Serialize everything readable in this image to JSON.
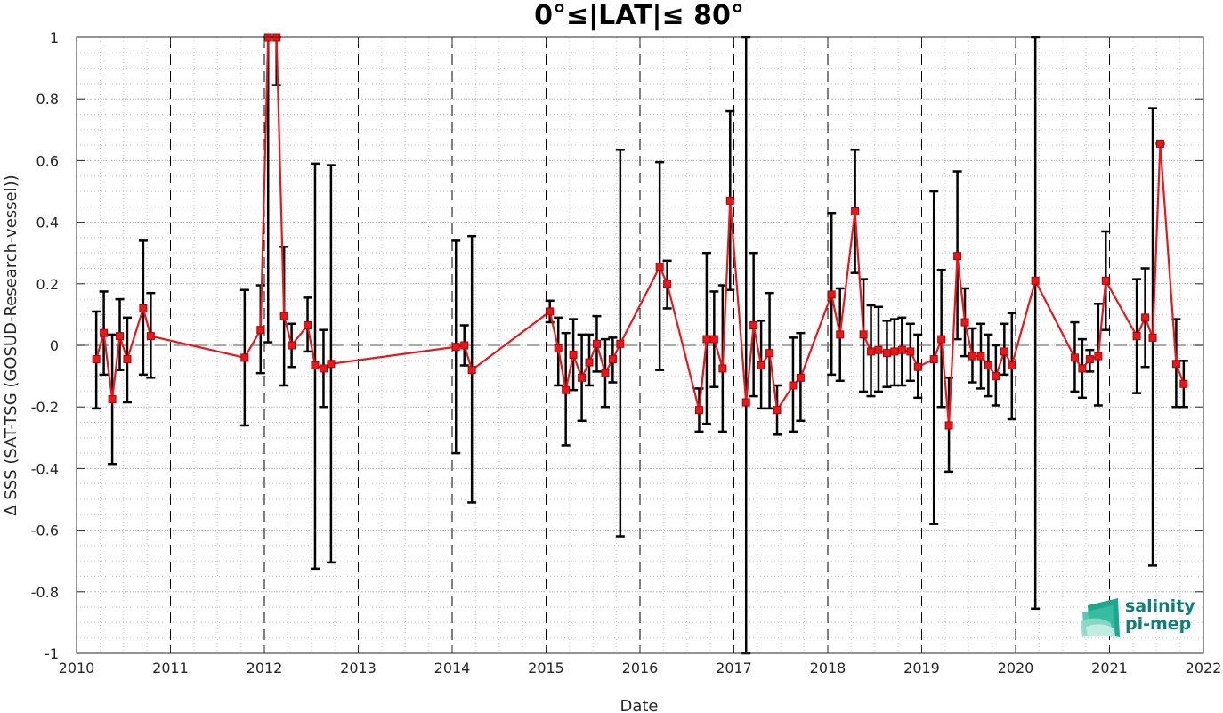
{
  "chart_data": {
    "type": "scatter",
    "title": "0°≤|LAT|≤ 80°",
    "xlabel": "Date",
    "ylabel": "Δ SSS (SAT-TSG (GOSUD-Research-vessel))",
    "xlim": [
      2010,
      2022
    ],
    "ylim": [
      -1,
      1
    ],
    "x_ticks": [
      "2010",
      "2011",
      "2012",
      "2013",
      "2014",
      "2015",
      "2016",
      "2017",
      "2018",
      "2019",
      "2020",
      "2021",
      "2022"
    ],
    "y_ticks": [
      "-1",
      "-0.8",
      "-0.6",
      "-0.4",
      "-0.2",
      "0",
      "0.2",
      "0.4",
      "0.6",
      "0.8",
      "1"
    ],
    "grid": "dotted",
    "year_boundary_lines": "dashed vertical lines at each year",
    "zero_line": "dashed horizontal line at 0",
    "colors": {
      "series": "#e8171c",
      "errorbar": "#000000",
      "grid": "#c8c8c8"
    },
    "series": [
      {
        "marker": "square",
        "x": [
          2010.21,
          2010.29,
          2010.38,
          2010.46,
          2010.54,
          2010.71,
          2010.79,
          2011.79,
          2011.96,
          2012.04,
          2012.13,
          2012.21,
          2012.29,
          2012.46,
          2012.54,
          2012.63,
          2012.71,
          2014.04,
          2014.13,
          2014.21,
          2015.04,
          2015.13,
          2015.21,
          2015.29,
          2015.38,
          2015.46,
          2015.54,
          2015.63,
          2015.71,
          2015.79,
          2016.21,
          2016.29,
          2016.63,
          2016.71,
          2016.79,
          2016.88,
          2016.96,
          2017.13,
          2017.21,
          2017.29,
          2017.38,
          2017.46,
          2017.63,
          2017.71,
          2018.04,
          2018.13,
          2018.29,
          2018.38,
          2018.46,
          2018.54,
          2018.63,
          2018.71,
          2018.79,
          2018.88,
          2018.96,
          2019.13,
          2019.21,
          2019.29,
          2019.38,
          2019.46,
          2019.54,
          2019.63,
          2019.71,
          2019.79,
          2019.88,
          2019.96,
          2020.21,
          2020.63,
          2020.71,
          2020.79,
          2020.88,
          2020.96,
          2021.29,
          2021.38,
          2021.46,
          2021.54,
          2021.71,
          2021.79
        ],
        "y": [
          -0.045,
          0.04,
          -0.175,
          0.03,
          -0.045,
          0.12,
          0.03,
          -0.04,
          0.05,
          1.0,
          1.0,
          0.095,
          0.0,
          0.065,
          -0.065,
          -0.075,
          -0.06,
          -0.005,
          0.0,
          -0.08,
          0.11,
          -0.01,
          -0.145,
          -0.03,
          -0.105,
          -0.055,
          0.005,
          -0.09,
          -0.045,
          0.005,
          0.255,
          0.2,
          -0.21,
          0.02,
          0.02,
          -0.075,
          0.47,
          -0.185,
          0.065,
          -0.065,
          -0.025,
          -0.21,
          -0.13,
          -0.105,
          0.165,
          0.035,
          0.435,
          0.035,
          -0.02,
          -0.015,
          -0.025,
          -0.02,
          -0.015,
          -0.02,
          -0.07,
          -0.045,
          0.02,
          -0.26,
          0.29,
          0.075,
          -0.035,
          -0.035,
          -0.065,
          -0.1,
          -0.02,
          -0.065,
          0.21,
          -0.04,
          -0.075,
          -0.045,
          -0.035,
          0.21,
          0.03,
          0.09,
          0.025,
          0.655,
          -0.06,
          -0.125
        ],
        "err_low": [
          -0.205,
          -0.095,
          -0.385,
          -0.08,
          -0.185,
          -0.095,
          -0.105,
          -0.26,
          -0.09,
          0.01,
          0.845,
          -0.13,
          -0.07,
          -0.02,
          -0.725,
          -0.2,
          -0.705,
          -0.35,
          -0.065,
          -0.51,
          0.075,
          -0.13,
          -0.325,
          -0.145,
          -0.245,
          -0.13,
          -0.085,
          -0.2,
          -0.12,
          -0.62,
          -0.08,
          0.12,
          -0.28,
          -0.255,
          -0.135,
          -0.28,
          0.18,
          -1.0,
          -0.165,
          -0.205,
          -0.205,
          -0.29,
          -0.28,
          -0.245,
          -0.095,
          -0.115,
          0.235,
          -0.15,
          -0.165,
          -0.15,
          -0.135,
          -0.13,
          -0.13,
          -0.115,
          -0.17,
          -0.58,
          -0.2,
          -0.41,
          0.02,
          -0.035,
          -0.12,
          -0.14,
          -0.165,
          -0.195,
          -0.095,
          -0.24,
          -0.855,
          -0.15,
          -0.17,
          -0.085,
          -0.195,
          0.05,
          -0.155,
          -0.07,
          -0.715,
          0.655,
          -0.2,
          -0.2
        ],
        "err_high": [
          0.11,
          0.175,
          0.035,
          0.15,
          0.09,
          0.34,
          0.17,
          0.18,
          0.195,
          1.0,
          1.0,
          0.32,
          0.07,
          0.155,
          0.59,
          0.05,
          0.585,
          0.34,
          0.065,
          0.355,
          0.145,
          0.09,
          0.04,
          0.085,
          0.035,
          0.035,
          0.095,
          0.02,
          0.025,
          0.635,
          0.595,
          0.275,
          -0.14,
          0.3,
          0.175,
          0.195,
          0.76,
          1.0,
          0.3,
          0.08,
          0.17,
          -0.13,
          0.025,
          0.04,
          0.43,
          0.185,
          0.635,
          0.215,
          0.13,
          0.125,
          0.08,
          0.085,
          0.09,
          0.07,
          0.035,
          0.5,
          0.245,
          -0.105,
          0.565,
          0.185,
          0.055,
          0.07,
          0.035,
          0.0,
          0.07,
          0.105,
          1.0,
          0.075,
          0.02,
          -0.015,
          0.135,
          0.37,
          0.215,
          0.25,
          0.77,
          0.655,
          0.085,
          -0.05
        ]
      }
    ]
  },
  "logo": {
    "line1": "salinity",
    "line2": "pi-mep"
  }
}
